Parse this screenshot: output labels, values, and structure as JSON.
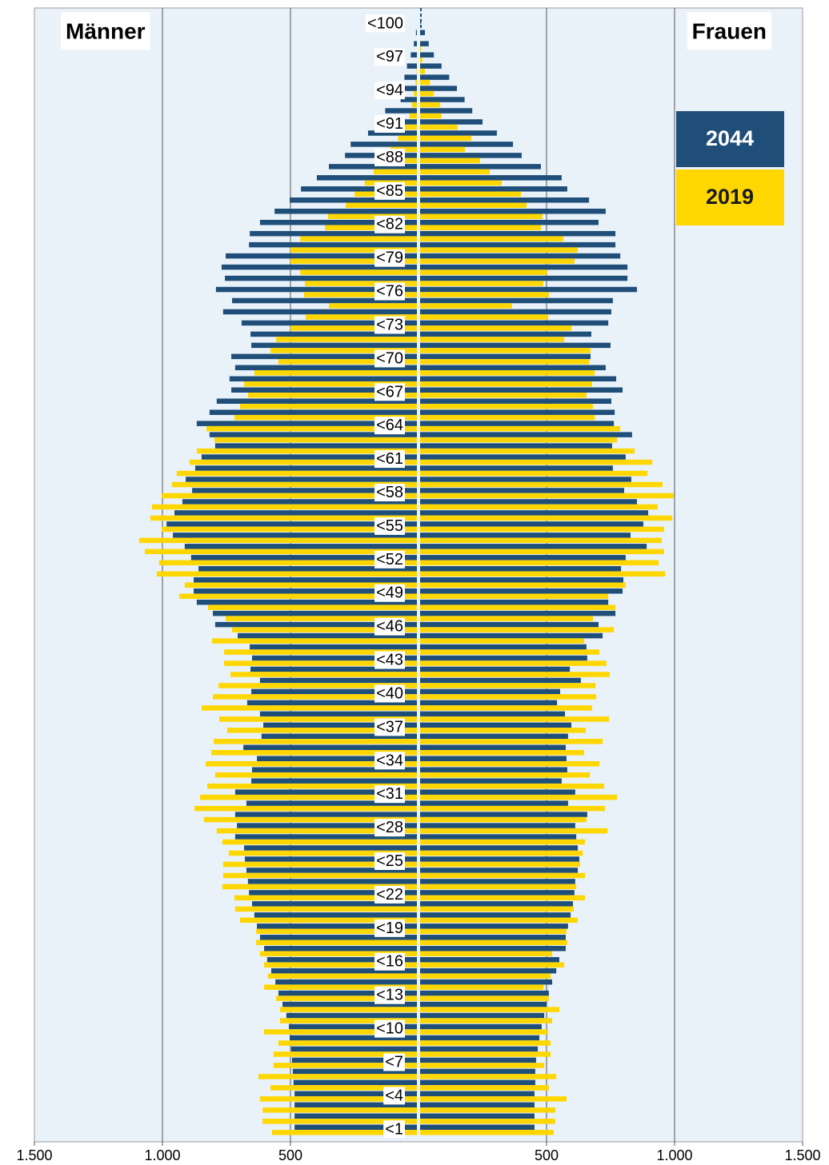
{
  "chart_data": {
    "type": "pyramid",
    "left_label": "Männer",
    "right_label": "Frauen",
    "categories": [
      "<1",
      null,
      null,
      "<4",
      null,
      null,
      "<7",
      null,
      null,
      "<10",
      null,
      null,
      "<13",
      null,
      null,
      "<16",
      null,
      null,
      "<19",
      null,
      null,
      "<22",
      null,
      null,
      "<25",
      null,
      null,
      "<28",
      null,
      null,
      "<31",
      null,
      null,
      "<34",
      null,
      null,
      "<37",
      null,
      null,
      "<40",
      null,
      null,
      "<43",
      null,
      null,
      "<46",
      null,
      null,
      "<49",
      null,
      null,
      "<52",
      null,
      null,
      "<55",
      null,
      null,
      "<58",
      null,
      null,
      "<61",
      null,
      null,
      "<64",
      null,
      null,
      "<67",
      null,
      null,
      "<70",
      null,
      null,
      "<73",
      null,
      null,
      "<76",
      null,
      null,
      "<79",
      null,
      null,
      "<82",
      null,
      null,
      "<85",
      null,
      null,
      "<88",
      null,
      null,
      "<91",
      null,
      null,
      "<94",
      null,
      null,
      "<97",
      null,
      null,
      "<100"
    ],
    "series": [
      {
        "name": "2044",
        "color": "#1f4e79",
        "left": [
          484,
          484,
          484,
          484,
          488,
          491,
          494,
          497,
          503,
          506,
          516,
          531,
          547,
          559,
          575,
          591,
          603,
          619,
          631,
          641,
          650,
          662,
          666,
          672,
          678,
          681,
          716,
          709,
          716,
          672,
          716,
          653,
          650,
          631,
          684,
          613,
          606,
          619,
          669,
          653,
          619,
          656,
          650,
          659,
          706,
          794,
          803,
          866,
          878,
          878,
          859,
          888,
          913,
          959,
          984,
          953,
          922,
          884,
          909,
          872,
          847,
          794,
          816,
          866,
          816,
          788,
          731,
          738,
          716,
          731,
          653,
          656,
          691,
          763,
          728,
          791,
          756,
          769,
          753,
          662,
          659,
          619,
          562,
          503,
          459,
          397,
          350,
          287,
          265,
          197,
          140,
          130,
          70,
          60,
          55,
          45,
          30,
          18,
          10,
          5
        ],
        "right": [
          453,
          453,
          453,
          453,
          456,
          456,
          459,
          466,
          472,
          481,
          491,
          500,
          509,
          522,
          538,
          550,
          575,
          575,
          584,
          594,
          603,
          609,
          612,
          622,
          628,
          622,
          616,
          612,
          659,
          584,
          612,
          559,
          581,
          578,
          575,
          584,
          597,
          572,
          541,
          553,
          634,
          591,
          659,
          656,
          719,
          703,
          769,
          741,
          797,
          800,
          791,
          809,
          891,
          828,
          878,
          897,
          853,
          803,
          831,
          759,
          809,
          756,
          834,
          763,
          766,
          753,
          797,
          772,
          731,
          672,
          750,
          675,
          741,
          753,
          759,
          853,
          816,
          816,
          788,
          769,
          769,
          703,
          731,
          666,
          581,
          559,
          478,
          403,
          369,
          306,
          250,
          210,
          180,
          150,
          120,
          90,
          60,
          40,
          25,
          10
        ]
      },
      {
        "name": "2019",
        "color": "#ffd700",
        "left": [
          572,
          609,
          609,
          619,
          578,
          625,
          566,
          566,
          547,
          603,
          541,
          541,
          556,
          603,
          588,
          603,
          619,
          634,
          634,
          697,
          716,
          719,
          766,
          763,
          763,
          741,
          766,
          788,
          838,
          875,
          853,
          825,
          794,
          831,
          809,
          800,
          747,
          778,
          847,
          803,
          781,
          734,
          759,
          759,
          806,
          728,
          753,
          822,
          934,
          913,
          1022,
          1013,
          1069,
          1091,
          1003,
          1047,
          1041,
          1003,
          963,
          944,
          894,
          866,
          797,
          828,
          719,
          697,
          666,
          681,
          641,
          547,
          578,
          556,
          500,
          441,
          350,
          447,
          444,
          462,
          500,
          500,
          462,
          365,
          353,
          284,
          250,
          210,
          175,
          150,
          110,
          80,
          55,
          35,
          25,
          18,
          12,
          8,
          5,
          3,
          2,
          1
        ],
        "right": [
          528,
          534,
          534,
          578,
          509,
          538,
          491,
          516,
          516,
          506,
          522,
          550,
          509,
          488,
          516,
          569,
          522,
          581,
          578,
          622,
          606,
          650,
          616,
          650,
          631,
          641,
          650,
          738,
          656,
          728,
          775,
          725,
          669,
          706,
          647,
          719,
          653,
          744,
          678,
          694,
          691,
          747,
          734,
          706,
          647,
          763,
          681,
          769,
          741,
          809,
          963,
          938,
          959,
          950,
          959,
          991,
          934,
          997,
          953,
          894,
          913,
          844,
          775,
          788,
          688,
          681,
          656,
          678,
          688,
          666,
          672,
          569,
          597,
          506,
          365,
          509,
          487,
          503,
          609,
          622,
          565,
          478,
          484,
          422,
          400,
          325,
          278,
          240,
          181,
          206,
          153,
          90,
          85,
          60,
          45,
          25,
          15,
          10,
          5,
          3
        ]
      }
    ],
    "xlim": [
      -1500,
      1500
    ],
    "xticks": [
      {
        "value": -1500,
        "label": "1.500"
      },
      {
        "value": -1000,
        "label": "1.000"
      },
      {
        "value": -500,
        "label": "500"
      },
      {
        "value": 500,
        "label": "500"
      },
      {
        "value": 1000,
        "label": "1.000"
      },
      {
        "value": 1500,
        "label": "1.500"
      }
    ],
    "grid": true
  }
}
